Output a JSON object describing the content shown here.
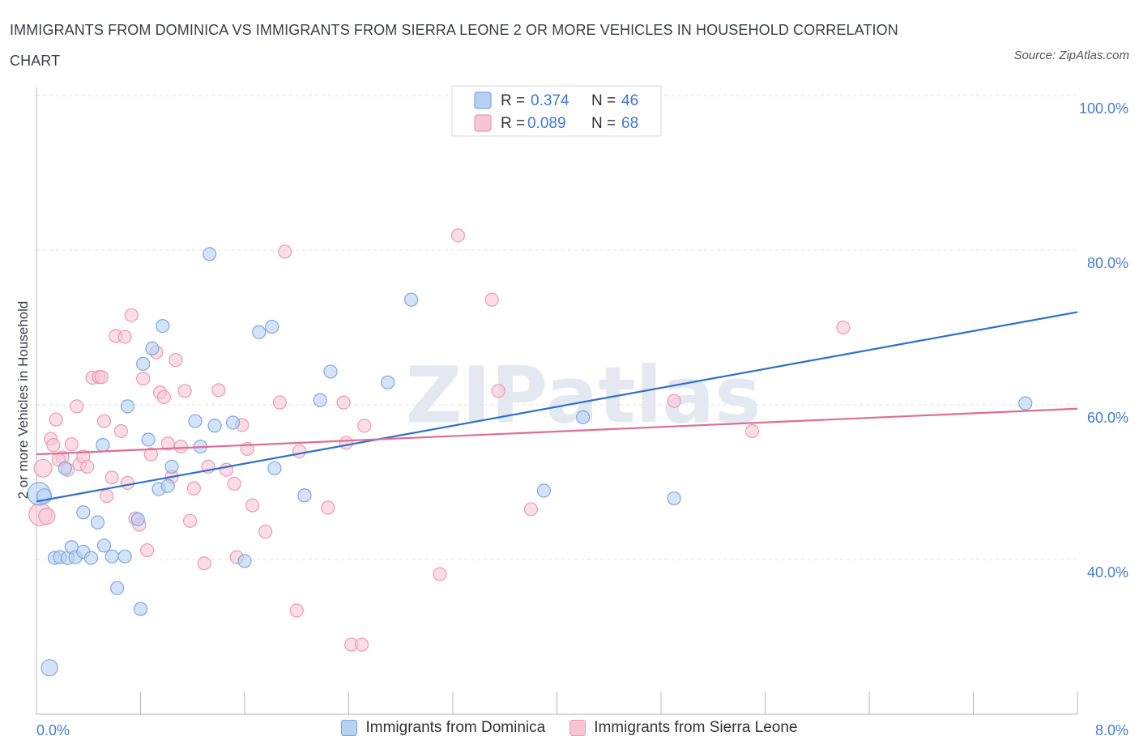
{
  "title": "IMMIGRANTS FROM DOMINICA VS IMMIGRANTS FROM SIERRA LEONE 2 OR MORE VEHICLES IN HOUSEHOLD CORRELATION CHART",
  "source": "Source: ZipAtlas.com",
  "watermark": "ZIPatlas",
  "colors": {
    "dominica_fill": "#b7d1f3",
    "dominica_stroke": "#7ea8e0",
    "dominica_line": "#2f6fd0",
    "sierra_fill": "#f7c6d4",
    "sierra_stroke": "#ec9bb3",
    "sierra_line": "#e06c95"
  },
  "legend": {
    "rows": [
      {
        "r_label": "R =",
        "r_value": "0.374",
        "n_label": "N =",
        "n_value": "46"
      },
      {
        "r_label": "R =",
        "r_value": "0.089",
        "n_label": "N =",
        "n_value": "68"
      }
    ]
  },
  "chart_data": {
    "type": "scatter",
    "title": "IMMIGRANTS FROM DOMINICA VS IMMIGRANTS FROM SIERRA LEONE 2 OR MORE VEHICLES IN HOUSEHOLD CORRELATION CHART",
    "xlabel": "",
    "ylabel": "2 or more Vehicles in Household",
    "xlim": [
      0,
      8
    ],
    "ylim": [
      20,
      100
    ],
    "x_tick_labels": [
      "0.0%",
      "8.0%"
    ],
    "y_ticks": [
      40,
      60,
      80,
      100
    ],
    "y_tick_labels": [
      "40.0%",
      "60.0%",
      "80.0%",
      "100.0%"
    ],
    "grid": true,
    "legend_position": "bottom",
    "series": [
      {
        "name": "Immigrants from Dominica",
        "trend": {
          "x": [
            0,
            8
          ],
          "y": [
            47.5,
            72
          ]
        },
        "points": [
          [
            0.02,
            48.5,
            14
          ],
          [
            0.06,
            48.2,
            9
          ],
          [
            0.1,
            26,
            10
          ],
          [
            0.14,
            40.2,
            8
          ],
          [
            0.18,
            40.3,
            8
          ],
          [
            0.24,
            40.2,
            8
          ],
          [
            0.27,
            41.6,
            8
          ],
          [
            0.3,
            40.3,
            8
          ],
          [
            0.36,
            41.0,
            8
          ],
          [
            0.42,
            40.2,
            8
          ],
          [
            0.52,
            41.8,
            8
          ],
          [
            0.58,
            40.4,
            8
          ],
          [
            0.62,
            36.3,
            8
          ],
          [
            0.68,
            40.4,
            8
          ],
          [
            0.78,
            45.2,
            8
          ],
          [
            0.8,
            33.6,
            8
          ],
          [
            0.22,
            51.8,
            8
          ],
          [
            0.36,
            46.1,
            8
          ],
          [
            0.47,
            44.8,
            8
          ],
          [
            0.51,
            54.8,
            8
          ],
          [
            0.7,
            59.8,
            8
          ],
          [
            0.82,
            65.3,
            8
          ],
          [
            0.86,
            55.5,
            8
          ],
          [
            0.89,
            67.3,
            8
          ],
          [
            0.94,
            49.1,
            8
          ],
          [
            0.97,
            70.2,
            8
          ],
          [
            1.01,
            49.5,
            8
          ],
          [
            1.04,
            52.0,
            8
          ],
          [
            1.22,
            57.9,
            8
          ],
          [
            1.26,
            54.6,
            8
          ],
          [
            1.33,
            79.5,
            8
          ],
          [
            1.37,
            57.3,
            8
          ],
          [
            1.51,
            57.7,
            8
          ],
          [
            1.6,
            39.8,
            8
          ],
          [
            1.71,
            69.4,
            8
          ],
          [
            1.81,
            70.1,
            8
          ],
          [
            1.83,
            51.8,
            8
          ],
          [
            2.06,
            48.3,
            8
          ],
          [
            2.18,
            60.6,
            8
          ],
          [
            2.26,
            64.3,
            8
          ],
          [
            2.7,
            62.9,
            8
          ],
          [
            2.88,
            73.6,
            8
          ],
          [
            3.9,
            48.9,
            8
          ],
          [
            4.2,
            58.4,
            8
          ],
          [
            4.9,
            47.9,
            8
          ],
          [
            7.6,
            60.2,
            8
          ]
        ]
      },
      {
        "name": "Immigrants from Sierra Leone",
        "trend": {
          "x": [
            0,
            8
          ],
          "y": [
            53.6,
            59.5
          ]
        },
        "points": [
          [
            0.03,
            45.8,
            14
          ],
          [
            0.05,
            51.8,
            11
          ],
          [
            0.08,
            45.6,
            10
          ],
          [
            0.11,
            55.6,
            8
          ],
          [
            0.13,
            54.8,
            8
          ],
          [
            0.15,
            58.1,
            8
          ],
          [
            0.2,
            53.2,
            8
          ],
          [
            0.24,
            51.6,
            8
          ],
          [
            0.27,
            54.9,
            8
          ],
          [
            0.31,
            59.8,
            8
          ],
          [
            0.33,
            52.3,
            8
          ],
          [
            0.36,
            53.3,
            8
          ],
          [
            0.39,
            52.0,
            8
          ],
          [
            0.43,
            63.5,
            8
          ],
          [
            0.48,
            63.6,
            8
          ],
          [
            0.5,
            63.6,
            8
          ],
          [
            0.52,
            57.9,
            8
          ],
          [
            0.54,
            48.2,
            8
          ],
          [
            0.58,
            50.6,
            8
          ],
          [
            0.61,
            68.9,
            8
          ],
          [
            0.65,
            56.6,
            8
          ],
          [
            0.68,
            68.8,
            8
          ],
          [
            0.7,
            49.9,
            8
          ],
          [
            0.73,
            71.6,
            8
          ],
          [
            0.76,
            45.3,
            8
          ],
          [
            0.79,
            44.5,
            8
          ],
          [
            0.82,
            63.4,
            8
          ],
          [
            0.85,
            41.2,
            8
          ],
          [
            0.88,
            53.6,
            8
          ],
          [
            0.92,
            66.8,
            8
          ],
          [
            0.95,
            61.6,
            8
          ],
          [
            0.98,
            61.0,
            8
          ],
          [
            1.01,
            55.0,
            8
          ],
          [
            1.04,
            50.7,
            8
          ],
          [
            1.07,
            65.8,
            8
          ],
          [
            1.11,
            54.6,
            8
          ],
          [
            1.14,
            61.8,
            8
          ],
          [
            1.18,
            45.0,
            8
          ],
          [
            1.21,
            49.2,
            8
          ],
          [
            1.29,
            39.5,
            8
          ],
          [
            1.32,
            52.0,
            8
          ],
          [
            1.4,
            61.9,
            8
          ],
          [
            1.46,
            51.6,
            8
          ],
          [
            1.52,
            49.8,
            8
          ],
          [
            1.54,
            40.3,
            8
          ],
          [
            1.58,
            57.4,
            8
          ],
          [
            1.62,
            54.3,
            8
          ],
          [
            1.66,
            47.0,
            8
          ],
          [
            1.76,
            43.6,
            8
          ],
          [
            1.87,
            60.3,
            8
          ],
          [
            1.91,
            79.8,
            8
          ],
          [
            2.0,
            33.4,
            8
          ],
          [
            2.02,
            54.0,
            8
          ],
          [
            2.24,
            46.7,
            8
          ],
          [
            2.36,
            60.3,
            8
          ],
          [
            2.38,
            55.1,
            8
          ],
          [
            2.42,
            29.0,
            8
          ],
          [
            2.5,
            29.0,
            8
          ],
          [
            2.52,
            57.3,
            8
          ],
          [
            3.1,
            38.1,
            8
          ],
          [
            3.24,
            81.9,
            8
          ],
          [
            3.5,
            73.6,
            8
          ],
          [
            3.55,
            61.8,
            8
          ],
          [
            3.8,
            46.5,
            8
          ],
          [
            4.9,
            60.5,
            8
          ],
          [
            5.5,
            56.6,
            8
          ],
          [
            6.2,
            70.0,
            8
          ],
          [
            0.17,
            52.9,
            8
          ]
        ]
      }
    ]
  }
}
